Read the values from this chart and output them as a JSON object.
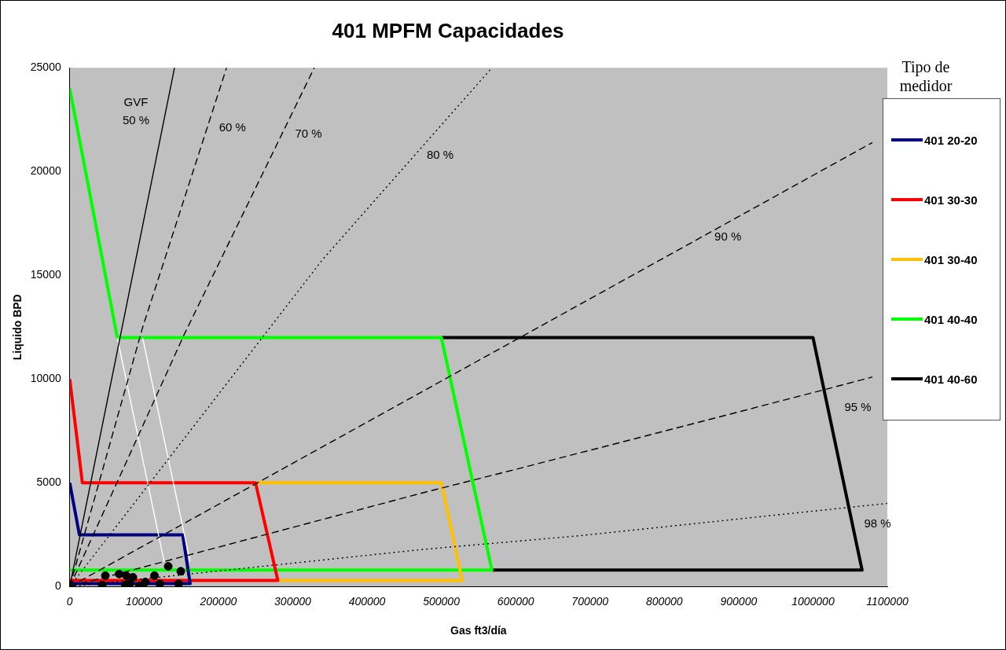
{
  "chart_data": {
    "type": "line",
    "title": "401 MPFM Capacidades",
    "xlabel": "Gas ft3/día",
    "ylabel": "Liquido BPD",
    "legend_title": "Tipo de medidor",
    "legend": "right",
    "xlim": [
      0,
      1100000
    ],
    "xticks": [
      0,
      100000,
      200000,
      300000,
      400000,
      500000,
      600000,
      700000,
      800000,
      900000,
      1000000,
      1100000
    ],
    "ylim": [
      0,
      25000
    ],
    "yticks": [
      0,
      5000,
      10000,
      15000,
      20000,
      25000
    ],
    "series": [
      {
        "color": "#000000",
        "line_style": "solid",
        "x": [
          0,
          141000
        ],
        "values": [
          0,
          25000
        ]
      },
      {
        "color": "#000000",
        "line_style": "dashed",
        "x": [
          0,
          98000,
          211000
        ],
        "values": [
          0,
          12480,
          25000
        ]
      },
      {
        "color": "#000000",
        "line_style": "dashed",
        "x": [
          0,
          154000,
          329000
        ],
        "values": [
          0,
          12150,
          25000
        ]
      },
      {
        "color": "#000000",
        "line_style": "dotted",
        "x": [
          0,
          340000,
          568000
        ],
        "values": [
          0,
          15750,
          25000
        ]
      },
      {
        "color": "#000000",
        "line_style": "dashed",
        "x": [
          0,
          477000,
          1080000
        ],
        "values": [
          0,
          9450,
          21400
        ]
      },
      {
        "color": "#000000",
        "line_style": "dashed",
        "x": [
          0,
          477000,
          600000,
          804000,
          1011000,
          1080000
        ],
        "values": [
          0,
          4540,
          5650,
          7530,
          9450,
          10100
        ]
      },
      {
        "color": "#000000",
        "line_style": "dotted",
        "x": [
          0,
          477000,
          685000,
          1011000,
          1100000
        ],
        "values": [
          0,
          1800,
          2450,
          3680,
          4010
        ]
      },
      {
        "color": "#ffffff",
        "line_style": "solid",
        "x": [
          64000,
          127000
        ],
        "values": [
          12000,
          1200
        ]
      },
      {
        "color": "#ffffff",
        "line_style": "solid",
        "x": [
          98000,
          162000
        ],
        "values": [
          12000,
          1200
        ]
      },
      {
        "name": "401 20-20",
        "color": "#000080",
        "line_style": "solid",
        "x": [
          0,
          13000,
          152000,
          162000,
          0
        ],
        "values": [
          5000,
          2500,
          2500,
          150,
          150
        ]
      },
      {
        "name": "401 30-30",
        "color": "#ff0000",
        "line_style": "solid",
        "x": [
          0,
          17000,
          250000,
          280000,
          0
        ],
        "values": [
          10000,
          5000,
          5000,
          300,
          300
        ]
      },
      {
        "name": "401 30-40",
        "color": "#ffc000",
        "line_style": "solid",
        "x": [
          250000,
          500000,
          528000,
          280000
        ],
        "values": [
          5000,
          5000,
          300,
          300
        ]
      },
      {
        "name": "401 40-40",
        "color": "#00ff00",
        "line_style": "solid",
        "x": [
          0,
          64000,
          500000,
          568000,
          0
        ],
        "values": [
          24000,
          12000,
          12000,
          800,
          800
        ]
      },
      {
        "name": "401 40-60",
        "color": "#000000",
        "line_style": "solid",
        "x": [
          500000,
          1000000,
          1066000,
          568000
        ],
        "values": [
          12000,
          12000,
          800,
          800
        ]
      },
      {
        "type": "scatter",
        "color": "#000000",
        "marker": "circle",
        "x": [
          47900,
          66500,
          76100,
          85000,
          114000,
          132500,
          149400,
          43800,
          74800,
          80700,
          93600,
          101700,
          121200,
          146400
        ],
        "values": [
          530,
          610,
          530,
          450,
          530,
          980,
          740,
          80,
          80,
          140,
          20,
          220,
          140,
          140
        ]
      }
    ],
    "annotations": [
      "GVF",
      "50 %",
      "60 %",
      "70 %",
      "80 %",
      "90 %",
      "95 %",
      "98 %"
    ]
  }
}
